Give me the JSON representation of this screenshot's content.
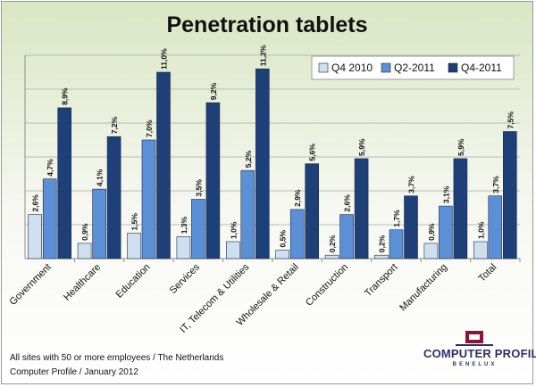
{
  "chart_data": {
    "type": "bar",
    "title": "Penetration tablets",
    "xlabel": "",
    "ylabel": "",
    "ylim": [
      0,
      12
    ],
    "grid": true,
    "legend_position": "top-right",
    "categories": [
      "Government",
      "Healthcare",
      "Education",
      "Services",
      "IT, Telecom & Utilities",
      "Wholesale & Retail",
      "Construction",
      "Transport",
      "Manufacturing",
      "Total"
    ],
    "series": [
      {
        "name": "Q4 2010",
        "color": "#cfdff0",
        "values": [
          2.6,
          0.9,
          1.5,
          1.3,
          1.0,
          0.5,
          0.2,
          0.2,
          0.9,
          1.0
        ],
        "labels": [
          "2,6%",
          "0,9%",
          "1,5%",
          "1,3%",
          "1,0%",
          "0,5%",
          "0,2%",
          "0,2%",
          "0,9%",
          "1,0%"
        ]
      },
      {
        "name": "Q2-2011",
        "color": "#5b8fd6",
        "values": [
          4.7,
          4.1,
          7.0,
          3.5,
          5.2,
          2.9,
          2.6,
          1.7,
          3.1,
          3.7
        ],
        "labels": [
          "4,7%",
          "4,1%",
          "7,0%",
          "3,5%",
          "5,2%",
          "2,9%",
          "2,6%",
          "1,7%",
          "3,1%",
          "3,7%"
        ]
      },
      {
        "name": "Q4-2011",
        "color": "#1f3f79",
        "values": [
          8.9,
          7.2,
          11.0,
          9.2,
          11.2,
          5.6,
          5.9,
          3.7,
          5.9,
          7.5
        ],
        "labels": [
          "8,9%",
          "7,2%",
          "11,0%",
          "9,2%",
          "11,2%",
          "5,6%",
          "5,9%",
          "3,7%",
          "5,9%",
          "7,5%"
        ]
      }
    ]
  },
  "footnote": {
    "line1": "All sites with 50 or more employees / The Netherlands",
    "line2": "Computer Profile / January 2012"
  },
  "logo": {
    "name": "COMPUTER PROFILE",
    "sub": "BENELUX",
    "color": "#2d2e6c",
    "accent": "#8b1538"
  }
}
